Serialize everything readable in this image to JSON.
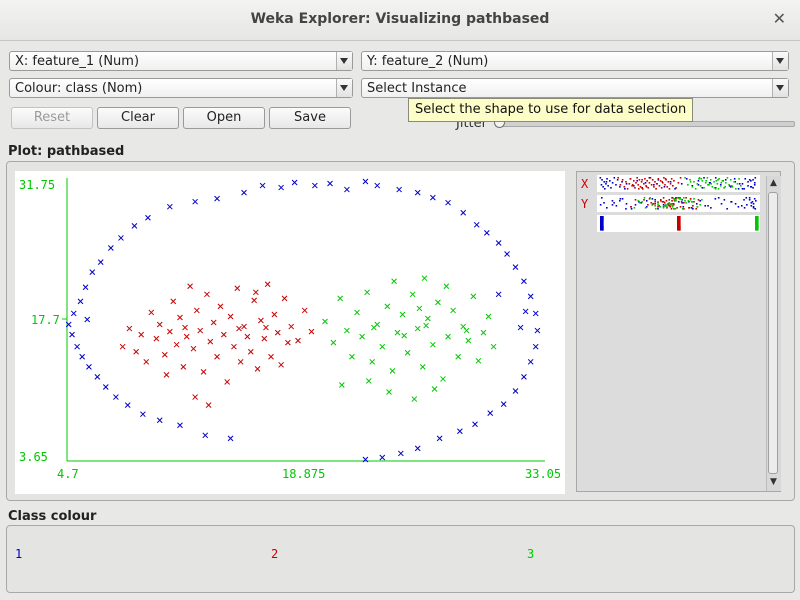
{
  "window": {
    "title": "Weka Explorer: Visualizing pathbased"
  },
  "controls": {
    "x_axis": "X: feature_1 (Num)",
    "y_axis": "Y: feature_2 (Num)",
    "colour": "Colour: class (Nom)",
    "select": "Select Instance",
    "buttons": {
      "reset": "Reset",
      "clear": "Clear",
      "open": "Open",
      "save": "Save"
    },
    "tooltip": "Select the shape to use for data selection",
    "jitter": "Jitter"
  },
  "plot": {
    "label": "Plot: pathbased",
    "x_ticks": [
      "4.7",
      "18.875",
      "33.05"
    ],
    "y_ticks": [
      "31.75",
      "17.7",
      "3.65"
    ],
    "attr_labels": {
      "x": "X",
      "y": "Y"
    }
  },
  "class_colour": {
    "label": "Class colour",
    "classes": [
      {
        "name": "1",
        "color": "#0000c8"
      },
      {
        "name": "2",
        "color": "#c80000"
      },
      {
        "name": "3",
        "color": "#00c800"
      }
    ]
  },
  "chart_data": {
    "type": "scatter",
    "x_range": [
      4.7,
      33.05
    ],
    "y_range": [
      3.65,
      31.75
    ],
    "marker": "x",
    "series": [
      {
        "name": "1",
        "color": "#0000c8",
        "points": [
          [
            4.8,
            17.2
          ],
          [
            5.0,
            16.2
          ],
          [
            5.1,
            18.3
          ],
          [
            5.3,
            15.0
          ],
          [
            5.5,
            19.5
          ],
          [
            5.6,
            14.0
          ],
          [
            5.8,
            20.9
          ],
          [
            6.0,
            13.0
          ],
          [
            6.2,
            22.4
          ],
          [
            6.5,
            12.0
          ],
          [
            6.7,
            23.4
          ],
          [
            7.0,
            11.0
          ],
          [
            7.3,
            24.8
          ],
          [
            7.6,
            10.0
          ],
          [
            7.9,
            25.8
          ],
          [
            8.3,
            9.2
          ],
          [
            8.7,
            27.0
          ],
          [
            9.2,
            8.3
          ],
          [
            9.5,
            27.8
          ],
          [
            10.2,
            7.7
          ],
          [
            10.8,
            28.9
          ],
          [
            11.4,
            7.2
          ],
          [
            12.3,
            29.4
          ],
          [
            12.9,
            6.2
          ],
          [
            13.6,
            29.7
          ],
          [
            14.4,
            5.9
          ],
          [
            15.2,
            30.3
          ],
          [
            16.3,
            31.0
          ],
          [
            17.4,
            30.8
          ],
          [
            18.2,
            31.3
          ],
          [
            19.4,
            31.0
          ],
          [
            20.3,
            31.2
          ],
          [
            21.3,
            30.6
          ],
          [
            22.4,
            31.4
          ],
          [
            23.1,
            31.0
          ],
          [
            24.4,
            30.6
          ],
          [
            25.5,
            30.3
          ],
          [
            26.4,
            29.8
          ],
          [
            27.3,
            29.3
          ],
          [
            28.2,
            28.3
          ],
          [
            29.0,
            27.1
          ],
          [
            29.6,
            26.3
          ],
          [
            30.3,
            25.3
          ],
          [
            30.8,
            24.2
          ],
          [
            31.3,
            22.9
          ],
          [
            31.8,
            21.5
          ],
          [
            32.2,
            20.0
          ],
          [
            32.5,
            18.3
          ],
          [
            32.6,
            16.6
          ],
          [
            32.5,
            15.0
          ],
          [
            32.2,
            13.5
          ],
          [
            31.8,
            12.0
          ],
          [
            31.3,
            10.6
          ],
          [
            30.6,
            9.3
          ],
          [
            29.8,
            8.4
          ],
          [
            28.9,
            7.3
          ],
          [
            28.0,
            6.6
          ],
          [
            26.8,
            5.9
          ],
          [
            25.5,
            4.9
          ],
          [
            24.5,
            4.4
          ],
          [
            23.4,
            4.0
          ],
          [
            22.4,
            3.8
          ],
          [
            31.6,
            16.9
          ],
          [
            31.9,
            18.5
          ],
          [
            5.9,
            17.7
          ],
          [
            30.3,
            20.2
          ]
        ]
      },
      {
        "name": "2",
        "color": "#c80000",
        "points": [
          [
            8.0,
            15.0
          ],
          [
            8.4,
            16.8
          ],
          [
            8.8,
            14.5
          ],
          [
            9.1,
            16.2
          ],
          [
            9.4,
            13.5
          ],
          [
            9.7,
            18.4
          ],
          [
            10.0,
            15.8
          ],
          [
            10.2,
            17.2
          ],
          [
            10.5,
            14.2
          ],
          [
            10.8,
            16.5
          ],
          [
            11.0,
            19.5
          ],
          [
            11.2,
            15.2
          ],
          [
            11.4,
            17.9
          ],
          [
            11.6,
            13.0
          ],
          [
            11.8,
            16.0
          ],
          [
            12.0,
            21.0
          ],
          [
            12.2,
            14.8
          ],
          [
            12.4,
            18.6
          ],
          [
            12.6,
            16.6
          ],
          [
            12.8,
            12.5
          ],
          [
            13.0,
            20.2
          ],
          [
            13.2,
            15.5
          ],
          [
            13.4,
            17.4
          ],
          [
            13.6,
            14.0
          ],
          [
            13.8,
            19.0
          ],
          [
            14.0,
            16.2
          ],
          [
            14.2,
            11.5
          ],
          [
            14.4,
            18.0
          ],
          [
            14.6,
            15.0
          ],
          [
            14.8,
            20.8
          ],
          [
            15.0,
            13.5
          ],
          [
            15.2,
            17.0
          ],
          [
            15.4,
            16.0
          ],
          [
            15.6,
            14.5
          ],
          [
            15.8,
            19.6
          ],
          [
            16.0,
            12.8
          ],
          [
            16.2,
            17.6
          ],
          [
            16.4,
            15.8
          ],
          [
            16.6,
            21.2
          ],
          [
            16.8,
            14.0
          ],
          [
            17.0,
            18.2
          ],
          [
            17.2,
            16.4
          ],
          [
            17.4,
            13.2
          ],
          [
            17.6,
            19.8
          ],
          [
            17.8,
            15.4
          ],
          [
            18.0,
            17.0
          ],
          [
            18.4,
            15.6
          ],
          [
            18.8,
            18.6
          ],
          [
            19.2,
            16.5
          ],
          [
            10.6,
            12.2
          ],
          [
            12.3,
            10.0
          ],
          [
            13.1,
            9.2
          ],
          [
            15.9,
            20.4
          ],
          [
            11.7,
            16.9
          ],
          [
            14.9,
            16.8
          ],
          [
            16.5,
            16.9
          ]
        ]
      },
      {
        "name": "3",
        "color": "#00c800",
        "points": [
          [
            20.0,
            17.5
          ],
          [
            20.5,
            15.4
          ],
          [
            20.9,
            19.8
          ],
          [
            21.3,
            16.6
          ],
          [
            21.6,
            14.0
          ],
          [
            21.9,
            18.4
          ],
          [
            22.2,
            16.0
          ],
          [
            22.5,
            20.4
          ],
          [
            22.8,
            13.5
          ],
          [
            23.1,
            17.2
          ],
          [
            23.4,
            15.0
          ],
          [
            23.7,
            19.0
          ],
          [
            24.0,
            12.6
          ],
          [
            24.3,
            16.4
          ],
          [
            24.6,
            18.2
          ],
          [
            24.9,
            14.4
          ],
          [
            25.2,
            20.2
          ],
          [
            25.5,
            16.8
          ],
          [
            25.8,
            13.0
          ],
          [
            26.1,
            17.8
          ],
          [
            26.4,
            15.2
          ],
          [
            26.7,
            19.4
          ],
          [
            27.0,
            11.8
          ],
          [
            27.3,
            16.0
          ],
          [
            27.6,
            18.6
          ],
          [
            27.9,
            14.0
          ],
          [
            28.2,
            17.0
          ],
          [
            28.5,
            15.6
          ],
          [
            28.8,
            20.0
          ],
          [
            29.1,
            13.6
          ],
          [
            29.4,
            16.4
          ],
          [
            29.7,
            18.0
          ],
          [
            30.0,
            15.0
          ],
          [
            23.8,
            10.5
          ],
          [
            25.3,
            9.8
          ],
          [
            26.5,
            10.8
          ],
          [
            22.6,
            11.6
          ],
          [
            24.1,
            21.5
          ],
          [
            25.9,
            21.8
          ],
          [
            27.2,
            21.0
          ],
          [
            21.0,
            11.2
          ],
          [
            26.0,
            17.1
          ],
          [
            24.7,
            16.1
          ],
          [
            22.9,
            16.9
          ],
          [
            28.4,
            16.6
          ],
          [
            25.6,
            18.8
          ]
        ]
      }
    ]
  }
}
